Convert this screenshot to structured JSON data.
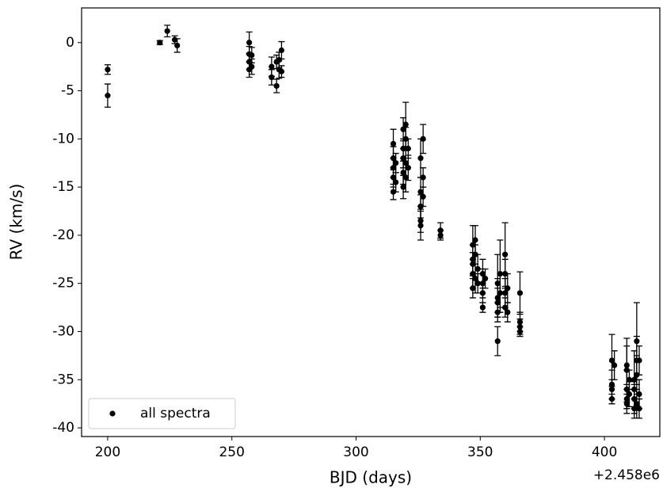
{
  "chart_data": {
    "type": "scatter",
    "xlabel": "BJD (days)",
    "ylabel": "RV (km/s)",
    "x_offset_text": "+2.458e6",
    "xlim": [
      189.5,
      422.3
    ],
    "ylim": [
      -40.9,
      3.6
    ],
    "xticks": [
      200,
      250,
      300,
      350,
      400
    ],
    "yticks": [
      0,
      -5,
      -10,
      -15,
      -20,
      -25,
      -30,
      -35,
      -40
    ],
    "legend": "lower left",
    "series": [
      {
        "name": "all spectra",
        "color": "#000000",
        "x": [
          200,
          200,
          221,
          224,
          227,
          228,
          257,
          257,
          257,
          257,
          258,
          258,
          266,
          266,
          268,
          268,
          269,
          269,
          270,
          270,
          315,
          315,
          315,
          315,
          315,
          316,
          316,
          319,
          319,
          319,
          319,
          319,
          320,
          320,
          320,
          320,
          321,
          321,
          326,
          326,
          326,
          326,
          326,
          327,
          327,
          327,
          334,
          334,
          347,
          347,
          347,
          347,
          347,
          348,
          348,
          348,
          349,
          349,
          351,
          351,
          351,
          351,
          352,
          357,
          357,
          357,
          357,
          357,
          358,
          358,
          360,
          360,
          360,
          360,
          361,
          361,
          366,
          366,
          366,
          366,
          403,
          403,
          403,
          403,
          404,
          409,
          409,
          409,
          409,
          409,
          410,
          410,
          412,
          412,
          412,
          412,
          413,
          413,
          413,
          413,
          414,
          414,
          414
        ],
        "values": [
          -2.8,
          -5.5,
          0,
          1.2,
          0.3,
          -0.3,
          0,
          -1.2,
          -2,
          -2.8,
          -1.3,
          -2.5,
          -2.5,
          -3.6,
          -4.5,
          -2,
          -2.8,
          -1.8,
          -0.8,
          -3,
          -10.5,
          -12,
          -13,
          -14,
          -15.5,
          -12.5,
          -14.5,
          -9,
          -11,
          -13.5,
          -15,
          -12,
          -8.5,
          -10,
          -14,
          -12.5,
          -11,
          -13,
          -12,
          -15.5,
          -17,
          -19,
          -18.5,
          -10,
          -14,
          -16,
          -19.5,
          -20,
          -21,
          -22.5,
          -24,
          -25.5,
          -23,
          -20.5,
          -24.5,
          -22,
          -23.5,
          -25,
          -24,
          -25,
          -27.5,
          -26,
          -24.5,
          -25,
          -31,
          -27,
          -26.5,
          -28,
          -24,
          -26,
          -22,
          -24,
          -26,
          -27.5,
          -25.5,
          -28,
          -26,
          -29,
          -30,
          -29.5,
          -33,
          -35.5,
          -37,
          -36,
          -33.5,
          -34,
          -36,
          -37,
          -33.5,
          -37.5,
          -36.5,
          -35,
          -35,
          -37,
          -38,
          -36,
          -31,
          -33,
          -34.5,
          -37.5,
          -33,
          -36.5,
          -38
        ],
        "yerr": [
          0.5,
          1.2,
          0.2,
          0.6,
          0.4,
          0.7,
          1.1,
          0.8,
          0.8,
          0.8,
          0.8,
          0.8,
          1,
          0.8,
          0.7,
          0.7,
          0.9,
          0.8,
          0.9,
          0.6,
          1.5,
          1.2,
          1,
          1,
          0.8,
          1,
          1,
          1.2,
          1,
          1.2,
          1.2,
          1,
          2.3,
          1.2,
          1.5,
          1.5,
          1,
          1.3,
          2,
          1.5,
          1.2,
          1.5,
          1.2,
          1.5,
          1,
          1,
          0.8,
          0.5,
          2,
          1.5,
          1.5,
          1,
          1.2,
          1.5,
          1.5,
          1,
          1.5,
          1,
          1.5,
          1.5,
          0.5,
          1,
          1,
          3,
          1.5,
          1.5,
          2,
          1,
          3.5,
          2,
          3.3,
          1.5,
          1.5,
          1,
          1.5,
          1,
          2.2,
          1,
          0.5,
          0.8,
          2.7,
          1.5,
          0.5,
          1,
          1.5,
          3.3,
          2,
          1,
          2,
          1,
          1.3,
          1,
          3,
          1.5,
          1,
          1,
          4,
          2.5,
          2,
          1.5,
          1.5,
          1.5,
          1
        ]
      }
    ]
  }
}
